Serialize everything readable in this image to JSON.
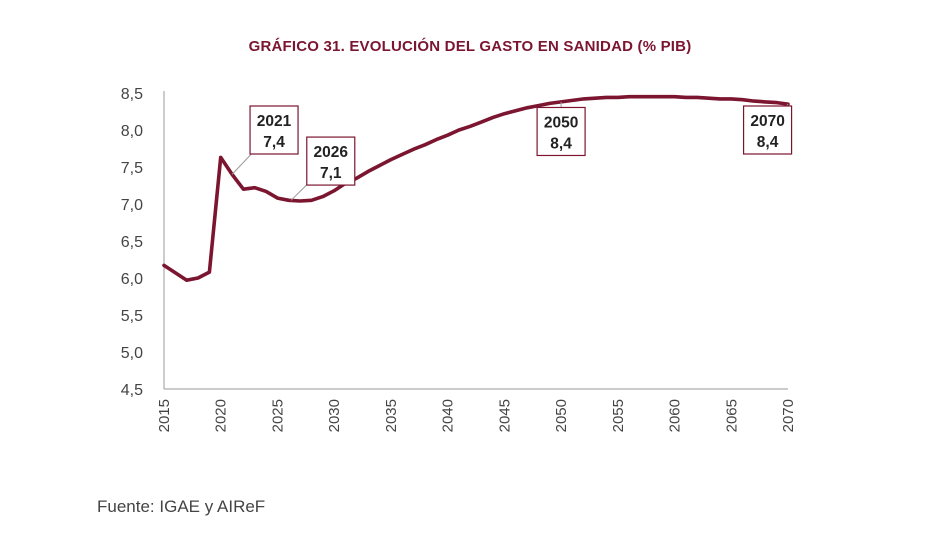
{
  "chart_data": {
    "type": "line",
    "title": "GRÁFICO 31.  EVOLUCIÓN DEL GASTO EN SANIDAD (% PIB)",
    "xlabel": "",
    "ylabel": "",
    "ylim": [
      4.5,
      8.5
    ],
    "xlim": [
      2015,
      2070
    ],
    "y_ticks": [
      "4,5",
      "5,0",
      "5,5",
      "6,0",
      "6,5",
      "7,0",
      "7,5",
      "8,0",
      "8,5"
    ],
    "x_ticks": [
      "2015",
      "2020",
      "2025",
      "2030",
      "2035",
      "2040",
      "2045",
      "2050",
      "2055",
      "2060",
      "2065",
      "2070"
    ],
    "series": [
      {
        "name": "Gasto en sanidad (% PIB)",
        "color": "#7b1530",
        "points": [
          [
            2015,
            6.17
          ],
          [
            2016,
            6.07
          ],
          [
            2017,
            5.97
          ],
          [
            2018,
            6.0
          ],
          [
            2019,
            6.08
          ],
          [
            2020,
            7.63
          ],
          [
            2021,
            7.4
          ],
          [
            2022,
            7.2
          ],
          [
            2023,
            7.22
          ],
          [
            2024,
            7.17
          ],
          [
            2025,
            7.08
          ],
          [
            2026,
            7.05
          ],
          [
            2027,
            7.04
          ],
          [
            2028,
            7.05
          ],
          [
            2029,
            7.1
          ],
          [
            2030,
            7.18
          ],
          [
            2031,
            7.28
          ],
          [
            2032,
            7.35
          ],
          [
            2033,
            7.44
          ],
          [
            2034,
            7.52
          ],
          [
            2035,
            7.6
          ],
          [
            2036,
            7.67
          ],
          [
            2037,
            7.74
          ],
          [
            2038,
            7.8
          ],
          [
            2039,
            7.87
          ],
          [
            2040,
            7.93
          ],
          [
            2041,
            8.0
          ],
          [
            2042,
            8.05
          ],
          [
            2043,
            8.11
          ],
          [
            2044,
            8.17
          ],
          [
            2045,
            8.22
          ],
          [
            2046,
            8.26
          ],
          [
            2047,
            8.3
          ],
          [
            2048,
            8.33
          ],
          [
            2049,
            8.36
          ],
          [
            2050,
            8.38
          ],
          [
            2051,
            8.4
          ],
          [
            2052,
            8.42
          ],
          [
            2053,
            8.43
          ],
          [
            2054,
            8.44
          ],
          [
            2055,
            8.44
          ],
          [
            2056,
            8.45
          ],
          [
            2057,
            8.45
          ],
          [
            2058,
            8.45
          ],
          [
            2059,
            8.45
          ],
          [
            2060,
            8.45
          ],
          [
            2061,
            8.44
          ],
          [
            2062,
            8.44
          ],
          [
            2063,
            8.43
          ],
          [
            2064,
            8.42
          ],
          [
            2065,
            8.42
          ],
          [
            2066,
            8.41
          ],
          [
            2067,
            8.39
          ],
          [
            2068,
            8.38
          ],
          [
            2069,
            8.37
          ],
          [
            2070,
            8.35
          ]
        ]
      }
    ],
    "annotations": [
      {
        "year": "2021",
        "value": "7,4",
        "point": [
          2021,
          7.4
        ],
        "box_center": [
          2024.7,
          8.0
        ]
      },
      {
        "year": "2026",
        "value": "7,1",
        "point": [
          2026.2,
          7.05
        ],
        "box_center": [
          2029.7,
          7.58
        ]
      },
      {
        "year": "2050",
        "value": "8,4",
        "point": [
          2050,
          8.38
        ],
        "box_center": [
          2050,
          7.98
        ]
      },
      {
        "year": "2070",
        "value": "8,4",
        "point": [
          2070,
          8.35
        ],
        "box_center": [
          2068.2,
          8.0
        ]
      }
    ],
    "grid": false,
    "legend": "none"
  },
  "footer": {
    "source": "Fuente: IGAE y AIReF"
  }
}
